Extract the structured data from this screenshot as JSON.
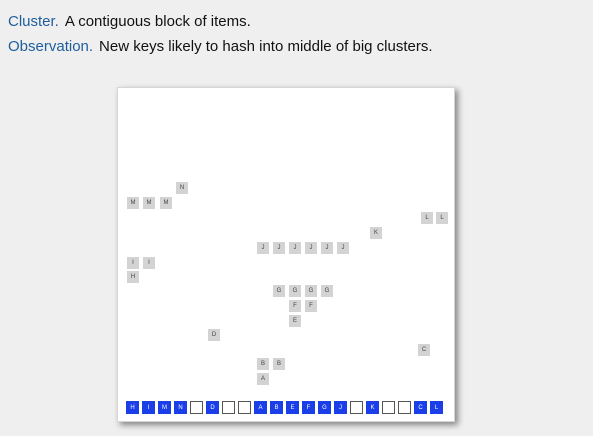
{
  "text": {
    "term1": "Cluster.",
    "def1": "A contiguous block of items.",
    "term2": "Observation.",
    "def2": "New keys likely to hash into middle of big clusters."
  },
  "colors": {
    "term": "#1f5e9c",
    "filled_cell": "#1a3ee8",
    "pending_key": "#d3d3d3"
  },
  "table": [
    "H",
    "I",
    "M",
    "N",
    "",
    "D",
    "",
    "",
    "A",
    "B",
    "E",
    "F",
    "G",
    "J",
    "",
    "K",
    "",
    "",
    "C",
    "L"
  ],
  "pending_keys": [
    "N",
    "M",
    "M",
    "M",
    "L",
    "L",
    "K",
    "J",
    "J",
    "J",
    "J",
    "J",
    "J",
    "I",
    "I",
    "H",
    "G",
    "G",
    "G",
    "G",
    "F",
    "F",
    "E",
    "D",
    "C",
    "B",
    "B",
    "A"
  ]
}
